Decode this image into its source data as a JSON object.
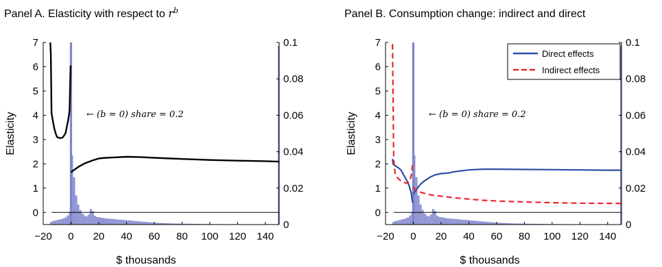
{
  "chart_data": [
    {
      "id": "A",
      "type": "line",
      "title": "Panel A. Elasticity with respect to ",
      "title_math": "r",
      "title_math_sup": "b",
      "xlabel": "$ thousands",
      "ylabel": "Elasticity",
      "xlim": [
        -20,
        150
      ],
      "ylim": [
        -0.5,
        7
      ],
      "y2lim": [
        0,
        0.1
      ],
      "xticks": [
        "−20",
        "0",
        "20",
        "40",
        "60",
        "80",
        "100",
        "120",
        "140"
      ],
      "xtick_values": [
        -20,
        0,
        20,
        40,
        60,
        80,
        100,
        120,
        140
      ],
      "yticks": [
        "0",
        "1",
        "2",
        "3",
        "4",
        "5",
        "6",
        "7"
      ],
      "ytick_values": [
        0,
        1,
        2,
        3,
        4,
        5,
        6,
        7
      ],
      "y2ticks": [
        "0",
        "0.02",
        "0.04",
        "0.06",
        "0.08",
        "0.1"
      ],
      "y2tick_values": [
        0,
        0.02,
        0.04,
        0.06,
        0.08,
        0.1
      ],
      "reference_line_y": 0,
      "annotation": {
        "text": "← (b = 0) share = 0.2",
        "x": 0,
        "y": 4.0
      },
      "series": [
        {
          "type": "line",
          "color": "#000000",
          "dash": "solid",
          "x": [
            -15,
            -14.5,
            -14,
            -13,
            -12,
            -11,
            -10,
            -8,
            -6,
            -4,
            -2,
            -1,
            -0.3
          ],
          "y": [
            7.2,
            6.5,
            4.1,
            3.75,
            3.45,
            3.25,
            3.1,
            3.06,
            3.08,
            3.25,
            3.8,
            4.2,
            6.05
          ]
        },
        {
          "type": "line",
          "color": "#000000",
          "dash": "solid",
          "x": [
            0,
            1,
            3,
            6,
            10,
            15,
            20,
            25,
            30,
            40,
            50,
            60,
            80,
            100,
            120,
            140,
            150
          ],
          "y": [
            1.65,
            1.7,
            1.78,
            1.9,
            2.02,
            2.13,
            2.22,
            2.25,
            2.26,
            2.29,
            2.28,
            2.25,
            2.2,
            2.16,
            2.13,
            2.11,
            2.09
          ]
        }
      ],
      "histogram": {
        "color": "#7f84cc",
        "bin_width": 1.5,
        "spike": {
          "x": 0,
          "value": 0.2
        },
        "bins_x": [
          -14.25,
          -12.75,
          -11.25,
          -9.75,
          -8.25,
          -6.75,
          -5.25,
          -3.75,
          -2.25,
          -0.75,
          0.75,
          2.25,
          3.75,
          5.25,
          6.75,
          8.25,
          9.75,
          11.25,
          12.75,
          14.25,
          15.75,
          17.25,
          18.75,
          20.25,
          21.75,
          23.25,
          24.75,
          26.25,
          27.75,
          29.25,
          30.75,
          32.25,
          33.75,
          35.25,
          36.75,
          38.25,
          39.75,
          41.25,
          42.75,
          44.25,
          45.75,
          47.25,
          48.75,
          50.25,
          51.75,
          53.25,
          54.75,
          56.25,
          57.75,
          59.25,
          60.75,
          62.25,
          63.75,
          65.25,
          66.75,
          68.25,
          69.75,
          71.25,
          72.75,
          74.25,
          75.75,
          77.25,
          78.75,
          80.25,
          81.75,
          83.25,
          84.75,
          86.25,
          87.75,
          89.25,
          90.75,
          92.25,
          93.75,
          95.25,
          96.75,
          98.25,
          99.75,
          101.25,
          102.75,
          104.25,
          105.75,
          107.25,
          108.75,
          110.25,
          111.75,
          113.25,
          114.75,
          116.25,
          117.75,
          119.25,
          120.75,
          122.25,
          123.75,
          125.25,
          126.75,
          128.25,
          129.75,
          131.25,
          132.75,
          134.25,
          135.75,
          137.25,
          138.75,
          140.25,
          141.75,
          143.25,
          144.75,
          146.25,
          147.75
        ],
        "bins_y": [
          0.0015,
          0.002,
          0.0022,
          0.0025,
          0.0028,
          0.003,
          0.0035,
          0.004,
          0.005,
          0.007,
          0.038,
          0.026,
          0.016,
          0.011,
          0.008,
          0.006,
          0.005,
          0.0045,
          0.0055,
          0.0085,
          0.0075,
          0.0048,
          0.0042,
          0.004,
          0.0038,
          0.0036,
          0.0034,
          0.0033,
          0.0032,
          0.0031,
          0.003,
          0.0029,
          0.0028,
          0.0027,
          0.0026,
          0.0025,
          0.0024,
          0.0023,
          0.0022,
          0.0021,
          0.002,
          0.0019,
          0.0018,
          0.0017,
          0.0016,
          0.0015,
          0.0014,
          0.0013,
          0.0012,
          0.0011,
          0.001,
          0.00095,
          0.0009,
          0.00085,
          0.0008,
          0.00075,
          0.0007,
          0.00065,
          0.0006,
          0.00058,
          0.00056,
          0.00054,
          0.00052,
          0.0005,
          0.00048,
          0.00046,
          0.00044,
          0.00042,
          0.0004,
          0.00038,
          0.00036,
          0.00034,
          0.00032,
          0.0003,
          0.00028,
          0.00027,
          0.00026,
          0.00025,
          0.00024,
          0.00023,
          0.00022,
          0.00021,
          0.0002,
          0.0002,
          0.00019,
          0.00018,
          0.00017,
          0.00016,
          0.00015,
          0.00015,
          0.00014,
          0.00013,
          0.00012,
          0.00012,
          0.00011,
          0.0001,
          0.0001,
          0.0001,
          0.0001,
          0.0001,
          0.0001,
          0.0001,
          0.0001,
          0.0001,
          0.0001,
          0.0001,
          0.0001,
          0.0001,
          0.0001
        ]
      }
    },
    {
      "id": "B",
      "type": "line",
      "title": "Panel B. Consumption change: indirect and direct",
      "xlabel": "$ thousands",
      "ylabel": "Elasticity",
      "xlim": [
        -20,
        150
      ],
      "ylim": [
        -0.5,
        7
      ],
      "y2lim": [
        0,
        0.1
      ],
      "xticks": [
        "−20",
        "0",
        "20",
        "40",
        "60",
        "80",
        "100",
        "120",
        "140"
      ],
      "xtick_values": [
        -20,
        0,
        20,
        40,
        60,
        80,
        100,
        120,
        140
      ],
      "yticks": [
        "0",
        "1",
        "2",
        "3",
        "4",
        "5",
        "6",
        "7"
      ],
      "ytick_values": [
        0,
        1,
        2,
        3,
        4,
        5,
        6,
        7
      ],
      "y2ticks": [
        "0",
        "0.02",
        "0.04",
        "0.06",
        "0.08",
        "0.1"
      ],
      "y2tick_values": [
        0,
        0.02,
        0.04,
        0.06,
        0.08,
        0.1
      ],
      "reference_line_y": 0,
      "annotation": {
        "text": "← (b = 0) share = 0.2",
        "x": 0,
        "y": 4.0
      },
      "legend": {
        "position": "top-right",
        "entries": [
          "Direct effects",
          "Indirect effects"
        ]
      },
      "series": [
        {
          "name": "Direct effects",
          "color": "#2b4ea2",
          "dash": "solid",
          "x": [
            -15,
            -14.5,
            -13,
            -11,
            -9,
            -7,
            -5,
            -3,
            -1.5,
            -0.5
          ],
          "y": [
            2.2,
            1.98,
            1.92,
            1.85,
            1.75,
            1.55,
            1.35,
            1.1,
            0.8,
            0.4
          ]
        },
        {
          "name": "Direct effects",
          "color": "#2b4ea2",
          "dash": "solid",
          "x": [
            0,
            1,
            3,
            5,
            8,
            12,
            16,
            20,
            25,
            30,
            40,
            50,
            60,
            80,
            100,
            120,
            140,
            150
          ],
          "y": [
            0.75,
            0.85,
            1.0,
            1.15,
            1.3,
            1.45,
            1.55,
            1.6,
            1.62,
            1.68,
            1.75,
            1.78,
            1.78,
            1.77,
            1.76,
            1.75,
            1.74,
            1.74
          ]
        },
        {
          "name": "Indirect effects",
          "color": "#e8252a",
          "dash": "dashed",
          "x": [
            -15,
            -14.8,
            -14.5,
            -14.2,
            -14,
            -13,
            -11,
            -9,
            -7,
            -5,
            -3,
            -1.5,
            -0.5
          ],
          "y": [
            7.3,
            6.0,
            4.5,
            2.6,
            2.1,
            1.55,
            1.4,
            1.3,
            1.25,
            1.2,
            1.25,
            1.5,
            2.0
          ]
        },
        {
          "name": "Indirect effects",
          "color": "#e8252a",
          "dash": "dashed",
          "x": [
            0,
            1,
            3,
            6,
            10,
            15,
            20,
            30,
            40,
            50,
            60,
            80,
            100,
            120,
            140,
            150
          ],
          "y": [
            1.05,
            0.95,
            0.88,
            0.82,
            0.75,
            0.7,
            0.67,
            0.6,
            0.55,
            0.5,
            0.47,
            0.43,
            0.4,
            0.38,
            0.37,
            0.37
          ]
        }
      ],
      "histogram": {
        "color": "#7f84cc",
        "bin_width": 1.5,
        "spike": {
          "x": 0,
          "value": 0.2
        },
        "bins_x": [
          -14.25,
          -12.75,
          -11.25,
          -9.75,
          -8.25,
          -6.75,
          -5.25,
          -3.75,
          -2.25,
          -0.75,
          0.75,
          2.25,
          3.75,
          5.25,
          6.75,
          8.25,
          9.75,
          11.25,
          12.75,
          14.25,
          15.75,
          17.25,
          18.75,
          20.25,
          21.75,
          23.25,
          24.75,
          26.25,
          27.75,
          29.25,
          30.75,
          32.25,
          33.75,
          35.25,
          36.75,
          38.25,
          39.75,
          41.25,
          42.75,
          44.25,
          45.75,
          47.25,
          48.75,
          50.25,
          51.75,
          53.25,
          54.75,
          56.25,
          57.75,
          59.25,
          60.75,
          62.25,
          63.75,
          65.25,
          66.75,
          68.25,
          69.75,
          71.25,
          72.75,
          74.25,
          75.75,
          77.25,
          78.75,
          80.25,
          81.75,
          83.25,
          84.75,
          86.25,
          87.75,
          89.25,
          90.75,
          92.25,
          93.75,
          95.25,
          96.75,
          98.25,
          99.75,
          101.25,
          102.75,
          104.25,
          105.75,
          107.25,
          108.75,
          110.25,
          111.75,
          113.25,
          114.75,
          116.25,
          117.75,
          119.25,
          120.75,
          122.25,
          123.75,
          125.25,
          126.75,
          128.25,
          129.75,
          131.25,
          132.75,
          134.25,
          135.75,
          137.25,
          138.75,
          140.25,
          141.75,
          143.25,
          144.75,
          146.25,
          147.75
        ],
        "bins_y": [
          0.0015,
          0.002,
          0.0022,
          0.0025,
          0.0028,
          0.003,
          0.0035,
          0.004,
          0.005,
          0.007,
          0.038,
          0.026,
          0.016,
          0.011,
          0.008,
          0.006,
          0.005,
          0.0045,
          0.0055,
          0.0085,
          0.0075,
          0.0048,
          0.0042,
          0.004,
          0.0038,
          0.0036,
          0.0034,
          0.0033,
          0.0032,
          0.0031,
          0.003,
          0.0029,
          0.0028,
          0.0027,
          0.0026,
          0.0025,
          0.0024,
          0.0023,
          0.0022,
          0.0021,
          0.002,
          0.0019,
          0.0018,
          0.0017,
          0.0016,
          0.0015,
          0.0014,
          0.0013,
          0.0012,
          0.0011,
          0.001,
          0.00095,
          0.0009,
          0.00085,
          0.0008,
          0.00075,
          0.0007,
          0.00065,
          0.0006,
          0.00058,
          0.00056,
          0.00054,
          0.00052,
          0.0005,
          0.00048,
          0.00046,
          0.00044,
          0.00042,
          0.0004,
          0.00038,
          0.00036,
          0.00034,
          0.00032,
          0.0003,
          0.00028,
          0.00027,
          0.00026,
          0.00025,
          0.00024,
          0.00023,
          0.00022,
          0.00021,
          0.0002,
          0.0002,
          0.00019,
          0.00018,
          0.00017,
          0.00016,
          0.00015,
          0.00015,
          0.00014,
          0.00013,
          0.00012,
          0.00012,
          0.00011,
          0.0001,
          0.0001,
          0.0001,
          0.0001,
          0.0001,
          0.0001,
          0.0001,
          0.0001,
          0.0001,
          0.0001,
          0.0001,
          0.0001,
          0.0001,
          0.0001
        ]
      }
    }
  ]
}
